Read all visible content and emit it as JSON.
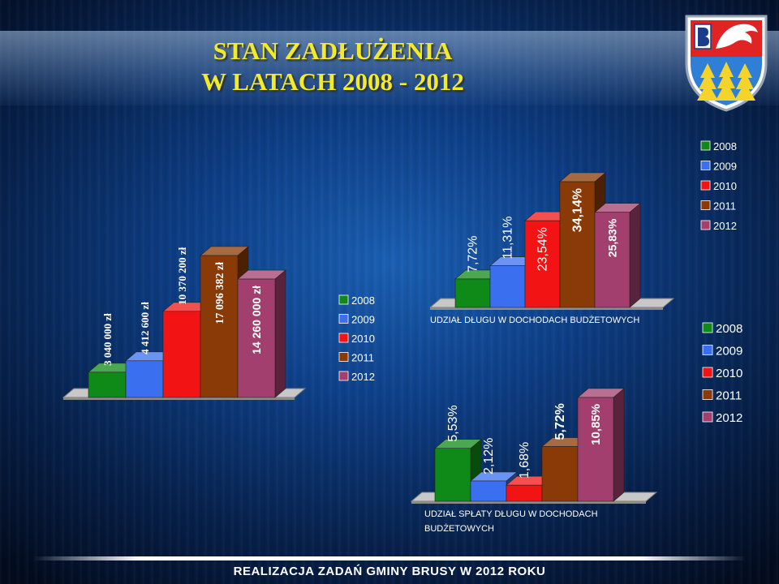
{
  "title": {
    "line1": "STAN ZADŁUŻENIA",
    "line2": "W LATACH 2008 - 2012"
  },
  "footer": {
    "text": "REALIZACJA ZADAŃ GMINY BRUSY W 2012 ROKU"
  },
  "colors": {
    "title": "#f3ea2a",
    "s2008": "#0f8a18",
    "s2009": "#3a6ff0",
    "s2010": "#f21414",
    "s2011": "#8a3a06",
    "s2012": "#a33f6e"
  },
  "chart_data": [
    {
      "id": "debt",
      "type": "bar",
      "categories": [
        "2008",
        "2009",
        "2010",
        "2011",
        "2012"
      ],
      "values": [
        3040000,
        4412600,
        10370200,
        17096382,
        14260000
      ],
      "data_labels": [
        "3 040 000 zł",
        "4 412 600 zł",
        "10 370 200 zł",
        "17 096 382 zł",
        "14 260 000 zł"
      ],
      "title": "",
      "legend": {
        "position": "right",
        "entries": [
          "2008",
          "2009",
          "2010",
          "2011",
          "2012"
        ]
      },
      "ylim": [
        0,
        20000000
      ],
      "grid": false
    },
    {
      "id": "debt_share",
      "type": "bar",
      "categories": [
        "2008",
        "2009",
        "2010",
        "2011",
        "2012"
      ],
      "values": [
        7.72,
        11.31,
        23.54,
        34.14,
        25.83
      ],
      "data_labels": [
        "7,72%",
        "11,31%",
        "23,54%",
        "34,14%",
        "25,83%"
      ],
      "xlabel": "UDZIAŁ DŁUGU W DOCHODACH BUDŻETOWYCH",
      "legend": {
        "position": "right",
        "entries": [
          "2008",
          "2009",
          "2010",
          "2011",
          "2012"
        ]
      },
      "ylim": [
        0,
        40
      ],
      "grid": false
    },
    {
      "id": "repayment_share",
      "type": "bar",
      "categories": [
        "2008",
        "2009",
        "2010",
        "2011",
        "2012"
      ],
      "values": [
        5.53,
        2.12,
        1.68,
        5.72,
        10.85
      ],
      "data_labels": [
        "5,53%",
        "2,12%",
        "1,68%",
        "5,72%",
        "10,85%"
      ],
      "xlabel_lines": [
        "UDZIAŁ SPŁATY DŁUGU W DOCHODACH",
        "BUDŻETOWYCH"
      ],
      "legend": {
        "position": "right",
        "entries": [
          "2008",
          "2009",
          "2010",
          "2011",
          "2012"
        ]
      },
      "ylim": [
        0,
        14
      ],
      "grid": false
    }
  ]
}
